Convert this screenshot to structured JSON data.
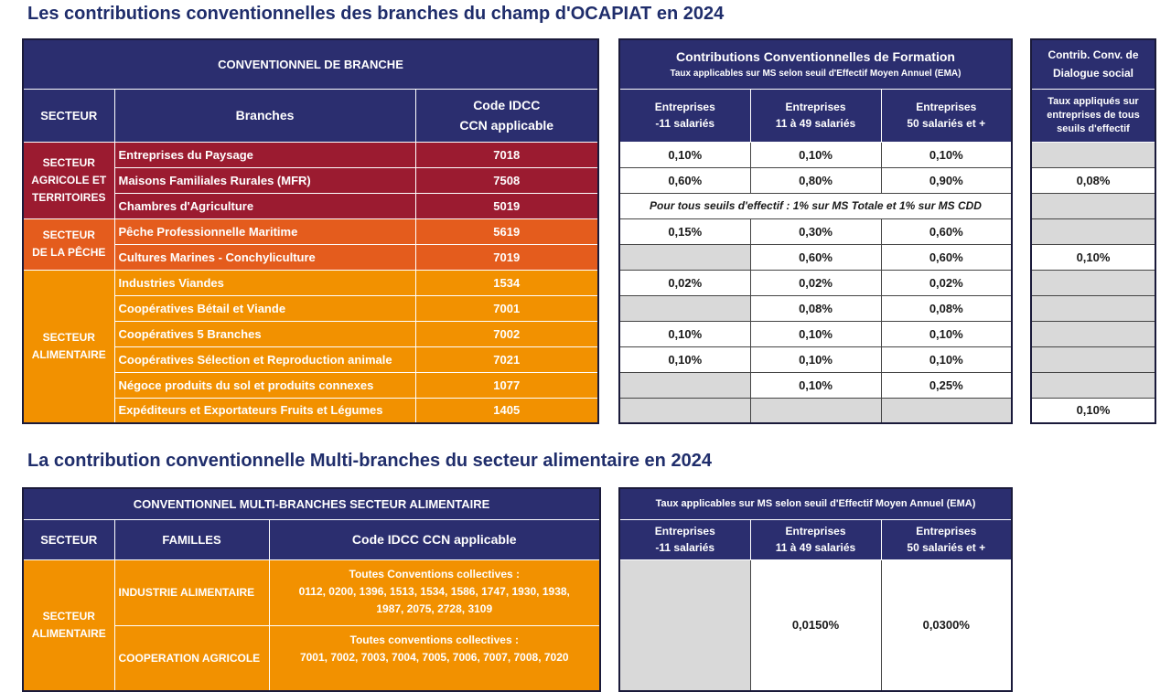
{
  "title1": "Les contributions conventionnelles des branches du champ d'OCAPIAT en 2024",
  "title2": "La contribution conventionnelle Multi-branches du secteur alimentaire en 2024",
  "table1": {
    "header": "CONVENTIONNEL DE BRANCHE",
    "col_secteur": "SECTEUR",
    "col_branches": "Branches",
    "col_code_l1": "Code IDCC",
    "col_code_l2": "CCN applicable",
    "sectors": [
      {
        "l1": "SECTEUR",
        "l2": "AGRICOLE ET",
        "l3": "TERRITOIRES"
      },
      {
        "l1": "SECTEUR",
        "l2": "DE LA PÊCHE"
      },
      {
        "l1": "SECTEUR",
        "l2": "ALIMENTAIRE"
      }
    ],
    "rows": [
      {
        "branche": "Entreprises du Paysage",
        "code": "7018"
      },
      {
        "branche": "Maisons Familiales Rurales (MFR)",
        "code": "7508"
      },
      {
        "branche": "Chambres d'Agriculture",
        "code": "5019"
      },
      {
        "branche": "Pêche Professionnelle Maritime",
        "code": "5619"
      },
      {
        "branche": "Cultures Marines - Conchyliculture",
        "code": "7019"
      },
      {
        "branche": "Industries Viandes",
        "code": "1534"
      },
      {
        "branche": "Coopératives Bétail et Viande",
        "code": "7001"
      },
      {
        "branche": "Coopératives 5 Branches",
        "code": "7002"
      },
      {
        "branche": "Coopératives Sélection et Reproduction animale",
        "code": "7021"
      },
      {
        "branche": "Négoce produits du sol et produits connexes",
        "code": "1077"
      },
      {
        "branche": "Expéditeurs et Exportateurs Fruits et Légumes",
        "code": "1405"
      }
    ]
  },
  "table2": {
    "header_l1": "Contributions Conventionnelles de Formation",
    "header_l2": "Taux applicables sur MS selon seuil d'Effectif Moyen Annuel (EMA)",
    "cols": [
      {
        "l1": "Entreprises",
        "l2": "-11 salariés"
      },
      {
        "l1": "Entreprises",
        "l2": "11 à 49 salariés"
      },
      {
        "l1": "Entreprises",
        "l2": "50 salariés et +"
      }
    ],
    "rows": [
      [
        "0,10%",
        "0,10%",
        "0,10%"
      ],
      [
        "0,60%",
        "0,80%",
        "0,90%"
      ],
      null,
      [
        "0,15%",
        "0,30%",
        "0,60%"
      ],
      [
        "",
        "0,60%",
        "0,60%"
      ],
      [
        "0,02%",
        "0,02%",
        "0,02%"
      ],
      [
        "",
        "0,08%",
        "0,08%"
      ],
      [
        "0,10%",
        "0,10%",
        "0,10%"
      ],
      [
        "0,10%",
        "0,10%",
        "0,10%"
      ],
      [
        "",
        "0,10%",
        "0,25%"
      ],
      [
        "",
        "",
        ""
      ]
    ],
    "note_row": "Pour tous seuils d'effectif : 1% sur MS Totale et 1% sur MS CDD"
  },
  "table3": {
    "header_l1": "Contrib. Conv. de",
    "header_l2": "Dialogue social",
    "sub_l1": "Taux appliqués sur",
    "sub_l2": "entreprises de tous",
    "sub_l3": "seuils d'effectif",
    "rows": [
      "",
      "0,08%",
      "",
      "",
      "0,10%",
      "",
      "",
      "",
      "",
      "",
      "0,10%"
    ]
  },
  "table4": {
    "header": "CONVENTIONNEL MULTI-BRANCHES SECTEUR ALIMENTAIRE",
    "col_secteur": "SECTEUR",
    "col_familles": "FAMILLES",
    "col_code": "Code IDCC CCN applicable",
    "secteur_l1": "SECTEUR",
    "secteur_l2": "ALIMENTAIRE",
    "rows": [
      {
        "famille": "INDUSTRIE ALIMENTAIRE",
        "codes_l1": "Toutes Conventions collectives :",
        "codes_l2": "0112, 0200, 1396, 1513, 1534, 1586, 1747, 1930, 1938,",
        "codes_l3": "1987, 2075, 2728, 3109"
      },
      {
        "famille": "COOPERATION AGRICOLE",
        "codes_l1": "Toutes conventions collectives :",
        "codes_l2": "7001, 7002, 7003, 7004, 7005, 7006, 7007, 7008, 7020"
      }
    ]
  },
  "table5": {
    "header": "Taux applicables sur MS selon seuil d'Effectif Moyen Annuel (EMA)",
    "cols": [
      {
        "l1": "Entreprises",
        "l2": "-11 salariés"
      },
      {
        "l1": "Entreprises",
        "l2": "11 à 49 salariés"
      },
      {
        "l1": "Entreprises",
        "l2": "50 salariés et +"
      }
    ],
    "rates": [
      "",
      "0,0150%",
      "0,0300%"
    ]
  }
}
